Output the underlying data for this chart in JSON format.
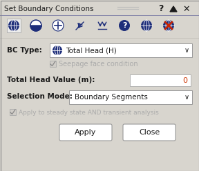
{
  "bg_color": "#d8d5ce",
  "title_text": "Set Boundary Conditions",
  "bc_type_label": "BC Type:",
  "bc_type_value": "   Total Head (H)",
  "seepage_label": "Seepage face condition",
  "total_head_label": "Total Head Value (m):",
  "total_head_value": "0",
  "selection_label": "Selection Mode:",
  "selection_value": "Boundary Segments",
  "apply_steady_label": "Apply to steady state AND transient analysis",
  "apply_btn": "Apply",
  "close_btn": "Close",
  "dark_blue": "#1e2e7a",
  "text_color": "#1a1a1a",
  "gray_text": "#999999",
  "white": "#ffffff",
  "light_gray": "#e0ddd8",
  "border_color": "#aaaaaa",
  "toolbar_box_bg": "#e8e6e0"
}
